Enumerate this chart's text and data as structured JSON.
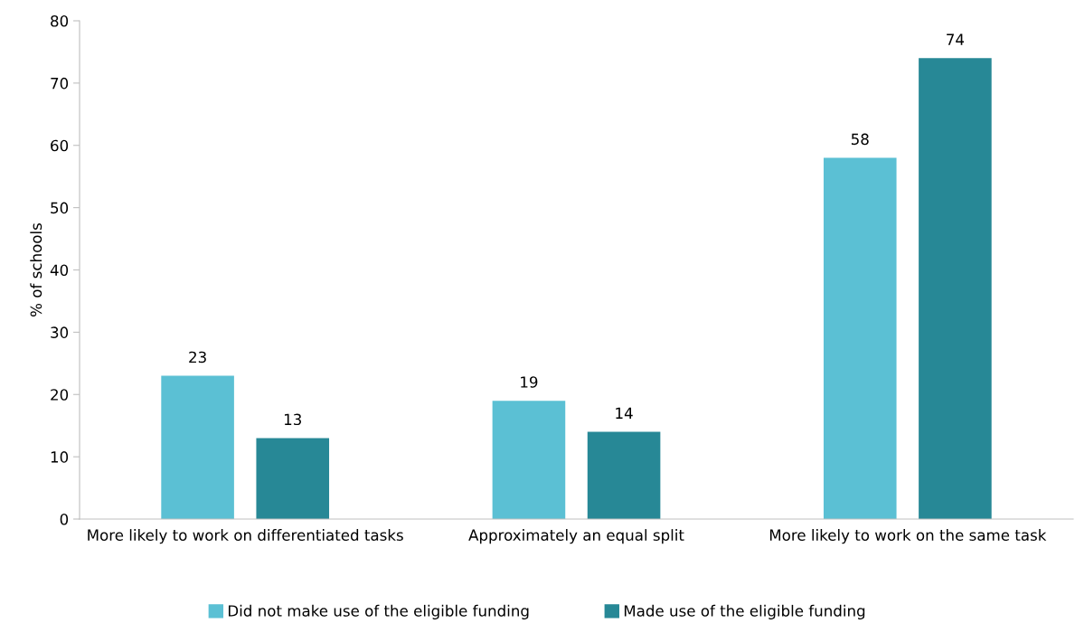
{
  "chart_data": {
    "type": "bar",
    "ylabel": "% of schools",
    "categories": [
      "More likely to work on differentiated tasks",
      "Approximately an equal split",
      "More likely to work on the same task"
    ],
    "series": [
      {
        "name": "Did not make use of the eligible funding",
        "color": "#5bc0d4",
        "values": [
          23,
          19,
          58
        ]
      },
      {
        "name": "Made use of the eligible funding",
        "color": "#278896",
        "values": [
          13,
          14,
          74
        ]
      }
    ],
    "ylim": [
      0,
      80
    ],
    "yticks": [
      0,
      10,
      20,
      30,
      40,
      50,
      60,
      70,
      80
    ],
    "grid": false,
    "legend": "bottom",
    "data_labels": true
  }
}
